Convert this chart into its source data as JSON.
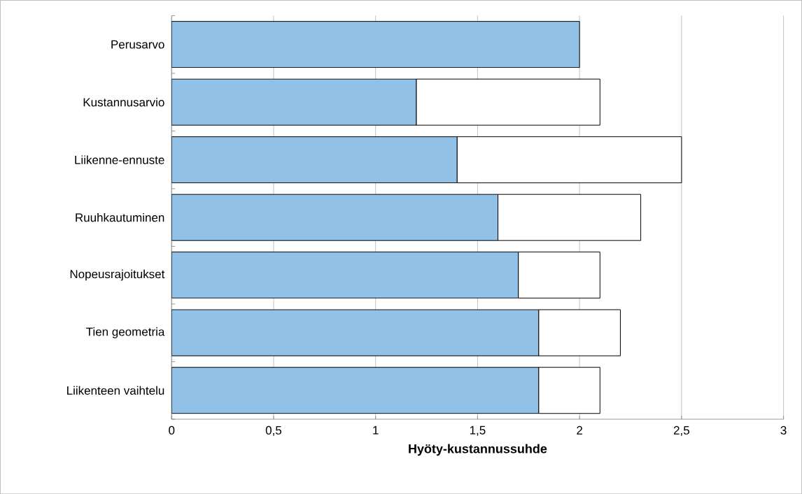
{
  "chart_data": {
    "type": "bar",
    "orientation": "horizontal",
    "stacked": true,
    "categories": [
      "Perusarvo",
      "Kustannusarvio",
      "Liikenne-ennuste",
      "Ruuhkautuminen",
      "Nopeusrajoitukset",
      "Tien geometria",
      "Liikenteen vaihtelu"
    ],
    "series": [
      {
        "color": "#92c1e8",
        "values": [
          2.0,
          1.2,
          1.4,
          1.6,
          1.7,
          1.8,
          1.8
        ]
      },
      {
        "color": "#ffffff",
        "values": [
          null,
          0.9,
          1.1,
          0.7,
          0.4,
          0.4,
          0.3
        ]
      }
    ],
    "xlabel": "Hyöty-kustannussuhde",
    "xlim": [
      0,
      3
    ],
    "xticks": [
      0,
      {
        "value": 0.5,
        "label": "0,5"
      },
      1,
      {
        "value": 1.5,
        "label": "1,5"
      },
      2,
      {
        "value": 2.5,
        "label": "2,5"
      },
      3
    ],
    "grid": "x"
  }
}
